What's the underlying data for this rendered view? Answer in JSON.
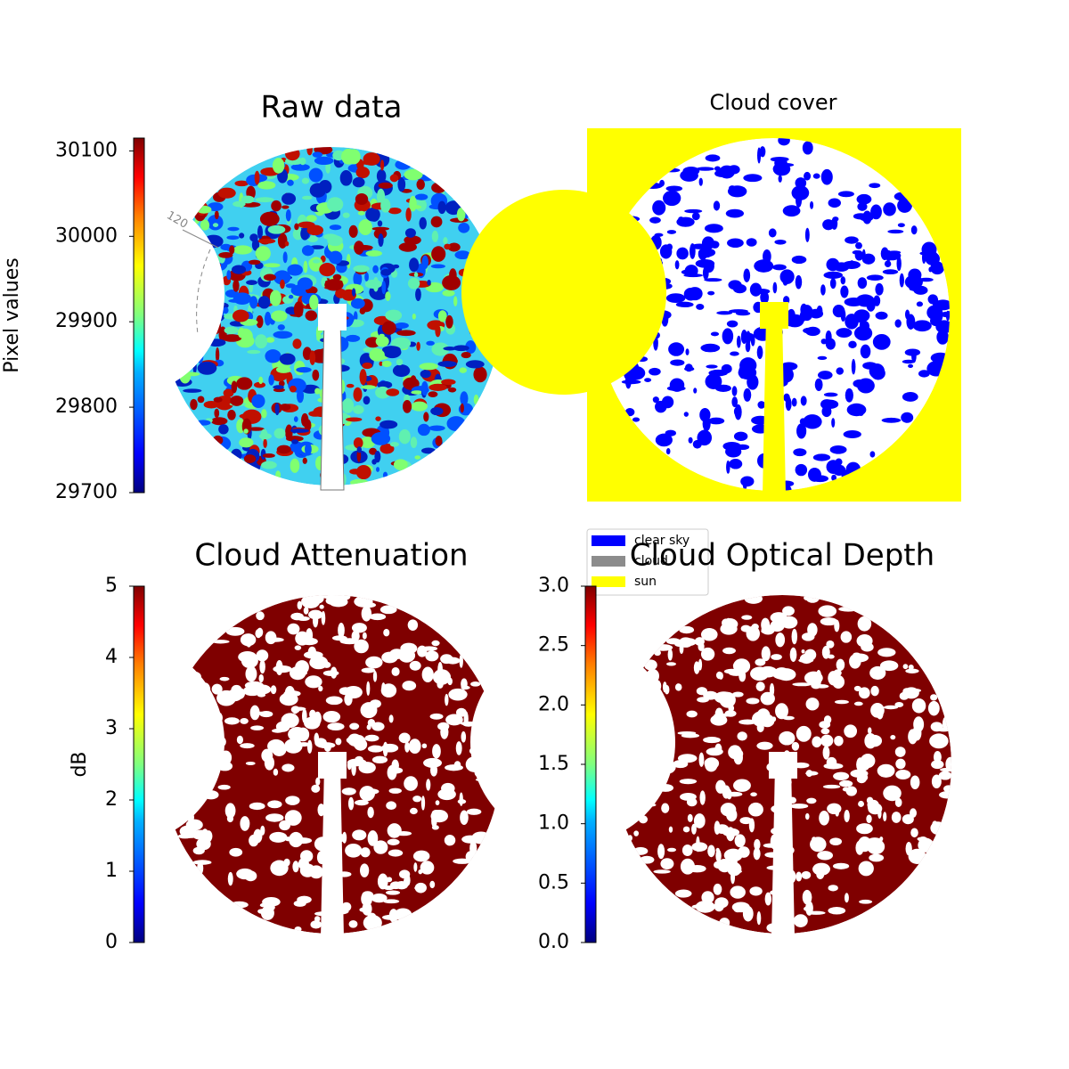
{
  "chart_data": [
    {
      "type": "image",
      "title": "Raw data",
      "annotation": "120",
      "colorbar": {
        "label": "Pixel values",
        "lim": [
          29700,
          30115
        ],
        "ticks": [
          29700,
          29800,
          29900,
          30000,
          30100
        ],
        "cmap": "jet"
      }
    },
    {
      "type": "image",
      "title": "Cloud cover",
      "series": [
        {
          "name": "clear sky",
          "color": "#0000ff"
        },
        {
          "name": "cloud",
          "color": "#8c8c8c"
        },
        {
          "name": "sun",
          "color": "#ffff00"
        }
      ]
    },
    {
      "type": "image",
      "title": "Cloud Attenuation",
      "colorbar": {
        "label": "dB",
        "lim": [
          0,
          5
        ],
        "ticks": [
          0,
          1,
          2,
          3,
          4,
          5
        ],
        "cmap": "jet"
      }
    },
    {
      "type": "image",
      "title": "Cloud Optical Depth",
      "colorbar": {
        "lim": [
          0,
          3
        ],
        "ticks": [
          {
            "value": 0,
            "label": "0.0"
          },
          {
            "value": 0.5,
            "label": "0.5"
          },
          {
            "value": 1,
            "label": "1.0"
          },
          {
            "value": 1.5,
            "label": "1.5"
          },
          {
            "value": 2,
            "label": "2.0"
          },
          {
            "value": 2.5,
            "label": "2.5"
          },
          {
            "value": 3,
            "label": "3.0"
          }
        ],
        "cmap": "jet"
      }
    }
  ]
}
